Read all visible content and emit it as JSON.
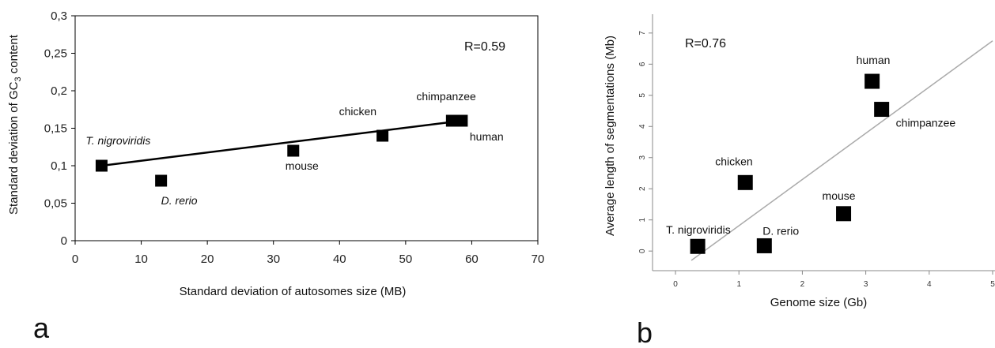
{
  "chart_data": [
    {
      "panel": "a",
      "type": "scatter",
      "xlabel": "Standard deviation of autosomes size (MB)",
      "ylabel_parts": [
        "Standard deviation of GC",
        "3",
        " content"
      ],
      "xlim": [
        0,
        70
      ],
      "ylim": [
        0,
        0.3
      ],
      "xticks": [
        0,
        10,
        20,
        30,
        40,
        50,
        60,
        70
      ],
      "xtick_labels": [
        "0",
        "10",
        "20",
        "30",
        "40",
        "50",
        "60",
        "70"
      ],
      "yticks": [
        0,
        0.05,
        0.1,
        0.15,
        0.2,
        0.25,
        0.3
      ],
      "ytick_labels": [
        "0",
        "0,05",
        "0,1",
        "0,15",
        "0,2",
        "0,25",
        "0,3"
      ],
      "grid": false,
      "annotation": "R=0.59",
      "points": [
        {
          "label": "T. nigroviridis",
          "x": 4,
          "y": 0.1,
          "italic": true
        },
        {
          "label": "D. rerio",
          "x": 13,
          "y": 0.08,
          "italic": true
        },
        {
          "label": "mouse",
          "x": 33,
          "y": 0.12,
          "italic": false
        },
        {
          "label": "chicken",
          "x": 46.5,
          "y": 0.14,
          "italic": false
        },
        {
          "label": "chimpanzee",
          "x": 57,
          "y": 0.16,
          "italic": false
        },
        {
          "label": "human",
          "x": 58.5,
          "y": 0.16,
          "italic": false
        }
      ],
      "trendline": [
        [
          4,
          0.1
        ],
        [
          58.5,
          0.16
        ]
      ]
    },
    {
      "panel": "b",
      "type": "scatter",
      "xlabel": "Genome size (Gb)",
      "ylabel": "Average length of segmentations (Mb)",
      "xlim": [
        -0.2,
        5
      ],
      "ylim": [
        -0.3,
        7.3
      ],
      "xticks": [
        0,
        1,
        2,
        3,
        4,
        5
      ],
      "xtick_labels": [
        "0",
        "1",
        "2",
        "3",
        "4",
        "5"
      ],
      "yticks": [
        0,
        1,
        2,
        3,
        4,
        5,
        6,
        7
      ],
      "ytick_labels": [
        "0",
        "1",
        "2",
        "3",
        "4",
        "5",
        "6",
        "7"
      ],
      "grid": false,
      "annotation": "R=0.76",
      "points": [
        {
          "label": "T. nigroviridis",
          "x": 0.35,
          "y": 0.15
        },
        {
          "label": "D. rerio",
          "x": 1.4,
          "y": 0.17
        },
        {
          "label": "chicken",
          "x": 1.1,
          "y": 2.2
        },
        {
          "label": "mouse",
          "x": 2.65,
          "y": 1.2
        },
        {
          "label": "human",
          "x": 3.1,
          "y": 5.45
        },
        {
          "label": "chimpanzee",
          "x": 3.25,
          "y": 4.55
        }
      ],
      "trendline": [
        [
          0.25,
          -0.3
        ],
        [
          5,
          6.75
        ]
      ]
    }
  ],
  "panel_labels": {
    "a": "a",
    "b": "b"
  }
}
